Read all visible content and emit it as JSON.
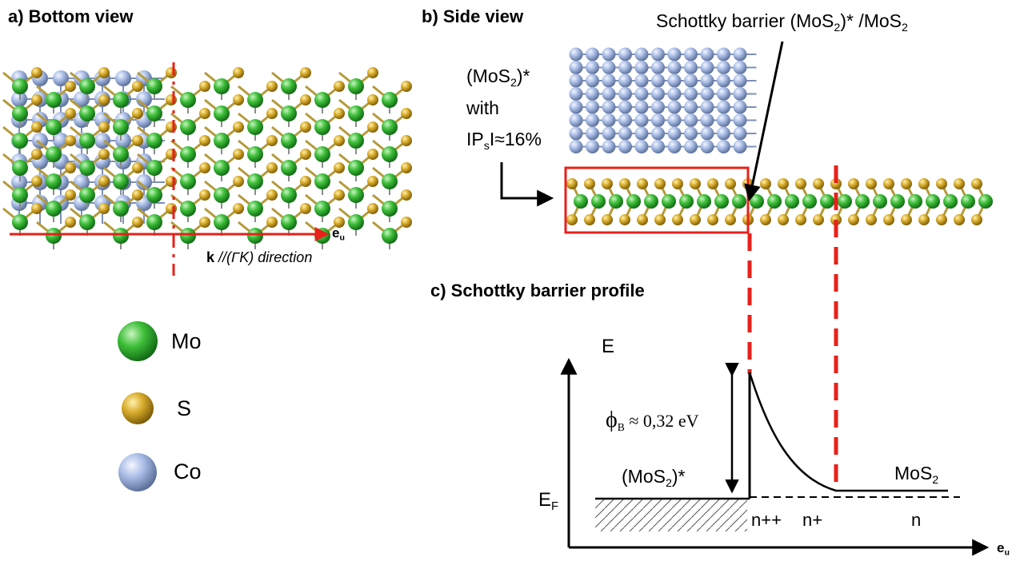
{
  "panel_a": {
    "title": "a) Bottom view",
    "axis_label": "e",
    "axis_sub": "u",
    "direction_k": "k",
    "direction_text": "//(ΓK) direction"
  },
  "panel_b": {
    "title": "b) Side view",
    "interface_label_pre": "Schottky barrier (MoS",
    "interface_label_sub": "2",
    "interface_label_post": ")* /MoS",
    "interface_label_sub2": "2",
    "strained_label_pre": "(MoS",
    "strained_label_sub": "2",
    "strained_label_post": ")*",
    "strained_label_with": "with",
    "strain_pre": "IP",
    "strain_sub": "s",
    "strain_post": "I≈16%"
  },
  "panel_c": {
    "title": "c) Schottky barrier profile",
    "y_axis_label": "E",
    "fermi_label": "E",
    "fermi_sub": "F",
    "x_axis_label": "e",
    "x_axis_sub": "u",
    "barrier_label": "≈ 0,32 eV",
    "barrier_symbol": "ϕ",
    "barrier_sub": "B",
    "left_region_pre": "(MoS",
    "left_region_sub": "2",
    "left_region_post": ")*",
    "right_region_pre": "MoS",
    "right_region_sub": "2",
    "doping_nplusplus": "n++",
    "doping_nplus": "n+",
    "doping_n": "n"
  },
  "legend": {
    "items": [
      {
        "label": "Mo",
        "color": "#2fae2f"
      },
      {
        "label": "S",
        "color": "#c9a227"
      },
      {
        "label": "Co",
        "color": "#9fb4e0"
      }
    ]
  },
  "colors": {
    "mo": "#2fae2f",
    "s": "#c9a227",
    "co": "#9fb4e0",
    "accent_red": "#e8201a",
    "bond_gray": "#8c8c8c"
  }
}
